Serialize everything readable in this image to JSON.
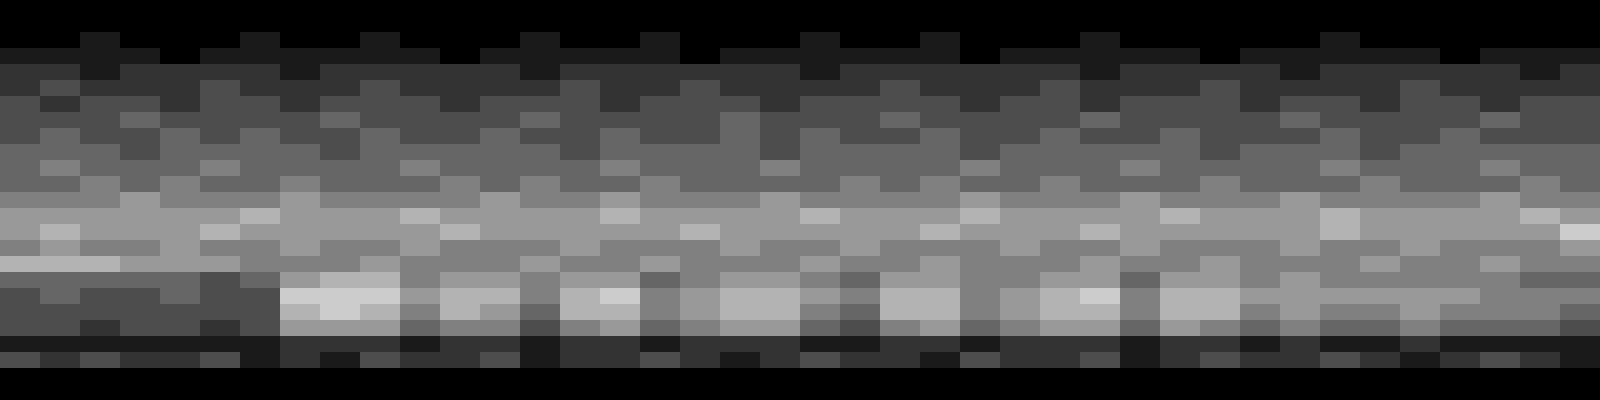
{
  "chart_data": {
    "type": "heatmap",
    "tick_labels": false,
    "zlim": [
      0,
      10
    ],
    "values": [
      [
        0,
        0,
        0,
        0,
        0,
        0,
        0,
        0,
        0,
        0,
        0,
        0,
        0,
        0,
        0,
        0,
        0,
        0,
        0,
        0,
        0,
        0,
        0,
        0,
        0,
        0,
        0,
        0,
        0,
        0,
        0,
        0,
        0,
        0,
        0,
        0,
        0,
        0,
        0,
        0
      ],
      [
        0,
        0,
        0,
        0,
        0,
        0,
        0,
        0,
        0,
        0,
        0,
        0,
        0,
        0,
        0,
        0,
        0,
        0,
        0,
        0,
        0,
        0,
        0,
        0,
        0,
        0,
        0,
        0,
        0,
        0,
        0,
        0,
        0,
        0,
        0,
        0,
        0,
        0,
        0,
        0
      ],
      [
        0,
        0,
        1,
        0,
        0,
        0,
        1,
        0,
        0,
        1,
        0,
        0,
        0,
        1,
        0,
        0,
        1,
        0,
        0,
        0,
        1,
        0,
        0,
        1,
        0,
        0,
        0,
        1,
        0,
        0,
        0,
        0,
        0,
        1,
        0,
        0,
        0,
        0,
        0,
        0
      ],
      [
        1,
        1,
        1,
        1,
        0,
        1,
        1,
        1,
        1,
        1,
        1,
        0,
        1,
        1,
        1,
        1,
        1,
        0,
        1,
        1,
        1,
        1,
        1,
        1,
        0,
        1,
        1,
        1,
        1,
        1,
        0,
        1,
        1,
        1,
        1,
        1,
        0,
        1,
        1,
        1
      ],
      [
        2,
        2,
        1,
        2,
        2,
        2,
        2,
        1,
        2,
        2,
        2,
        2,
        2,
        1,
        2,
        2,
        2,
        2,
        2,
        2,
        1,
        2,
        2,
        2,
        2,
        2,
        2,
        1,
        2,
        2,
        2,
        2,
        1,
        2,
        2,
        2,
        2,
        2,
        1,
        2
      ],
      [
        2,
        3,
        2,
        2,
        2,
        3,
        2,
        2,
        2,
        3,
        2,
        2,
        2,
        2,
        3,
        2,
        2,
        3,
        2,
        2,
        2,
        2,
        3,
        2,
        2,
        2,
        3,
        2,
        2,
        2,
        3,
        2,
        2,
        2,
        2,
        3,
        2,
        2,
        2,
        2
      ],
      [
        3,
        2,
        3,
        3,
        2,
        3,
        3,
        2,
        3,
        3,
        3,
        2,
        3,
        3,
        3,
        2,
        3,
        3,
        3,
        2,
        3,
        3,
        3,
        3,
        2,
        3,
        3,
        2,
        3,
        3,
        3,
        2,
        3,
        3,
        2,
        3,
        3,
        2,
        3,
        3
      ],
      [
        3,
        3,
        3,
        4,
        3,
        3,
        3,
        3,
        4,
        3,
        3,
        3,
        3,
        4,
        3,
        3,
        3,
        3,
        4,
        3,
        3,
        3,
        4,
        3,
        3,
        3,
        3,
        4,
        3,
        3,
        3,
        3,
        4,
        3,
        3,
        3,
        3,
        4,
        3,
        3
      ],
      [
        3,
        4,
        3,
        3,
        4,
        3,
        4,
        3,
        3,
        4,
        3,
        3,
        4,
        3,
        3,
        4,
        3,
        3,
        4,
        3,
        4,
        3,
        3,
        4,
        3,
        3,
        4,
        3,
        3,
        4,
        3,
        3,
        3,
        4,
        3,
        3,
        4,
        3,
        3,
        3
      ],
      [
        4,
        4,
        4,
        3,
        4,
        4,
        4,
        4,
        3,
        4,
        4,
        4,
        4,
        4,
        3,
        4,
        4,
        4,
        4,
        3,
        4,
        4,
        4,
        4,
        3,
        4,
        4,
        4,
        4,
        4,
        3,
        4,
        4,
        4,
        3,
        4,
        4,
        4,
        4,
        4
      ],
      [
        4,
        5,
        4,
        4,
        4,
        5,
        4,
        4,
        4,
        4,
        5,
        4,
        4,
        4,
        4,
        5,
        4,
        4,
        4,
        5,
        4,
        4,
        4,
        4,
        5,
        4,
        4,
        4,
        5,
        4,
        4,
        4,
        4,
        5,
        4,
        4,
        4,
        5,
        4,
        4
      ],
      [
        4,
        4,
        5,
        4,
        5,
        4,
        4,
        5,
        4,
        4,
        4,
        5,
        4,
        5,
        4,
        4,
        5,
        4,
        4,
        4,
        4,
        5,
        4,
        5,
        4,
        4,
        5,
        4,
        4,
        4,
        5,
        4,
        4,
        4,
        5,
        4,
        4,
        4,
        5,
        4
      ],
      [
        5,
        5,
        5,
        6,
        5,
        5,
        5,
        6,
        5,
        5,
        5,
        5,
        6,
        5,
        5,
        6,
        5,
        5,
        5,
        6,
        5,
        5,
        5,
        5,
        6,
        5,
        5,
        5,
        6,
        5,
        5,
        5,
        6,
        5,
        5,
        5,
        5,
        6,
        5,
        5
      ],
      [
        6,
        6,
        6,
        6,
        6,
        6,
        7,
        6,
        6,
        6,
        7,
        6,
        6,
        6,
        6,
        7,
        6,
        6,
        6,
        6,
        7,
        6,
        6,
        6,
        7,
        6,
        6,
        6,
        6,
        7,
        6,
        6,
        6,
        7,
        6,
        6,
        6,
        6,
        7,
        6
      ],
      [
        6,
        7,
        6,
        6,
        6,
        7,
        6,
        6,
        6,
        6,
        6,
        7,
        6,
        6,
        6,
        6,
        6,
        7,
        6,
        6,
        6,
        6,
        6,
        7,
        6,
        6,
        6,
        7,
        6,
        6,
        6,
        6,
        6,
        7,
        6,
        6,
        6,
        6,
        6,
        8
      ],
      [
        5,
        6,
        5,
        5,
        6,
        5,
        5,
        6,
        5,
        5,
        6,
        5,
        5,
        5,
        6,
        5,
        5,
        5,
        6,
        5,
        5,
        6,
        5,
        5,
        5,
        6,
        5,
        5,
        6,
        5,
        5,
        5,
        6,
        5,
        5,
        6,
        5,
        5,
        5,
        6
      ],
      [
        7,
        7,
        7,
        6,
        6,
        6,
        5,
        5,
        5,
        6,
        5,
        5,
        5,
        6,
        5,
        5,
        6,
        5,
        5,
        5,
        6,
        5,
        5,
        6,
        5,
        5,
        5,
        6,
        5,
        5,
        6,
        5,
        5,
        5,
        6,
        5,
        5,
        6,
        5,
        5
      ],
      [
        4,
        4,
        4,
        4,
        4,
        3,
        4,
        6,
        7,
        7,
        5,
        6,
        6,
        5,
        6,
        6,
        4,
        5,
        6,
        6,
        5,
        4,
        6,
        6,
        5,
        5,
        6,
        6,
        4,
        6,
        6,
        5,
        6,
        5,
        5,
        5,
        5,
        5,
        4,
        4
      ],
      [
        3,
        4,
        3,
        3,
        4,
        3,
        3,
        8,
        8,
        8,
        6,
        7,
        7,
        5,
        7,
        8,
        5,
        6,
        7,
        7,
        6,
        5,
        7,
        7,
        5,
        6,
        7,
        8,
        5,
        7,
        7,
        6,
        6,
        6,
        6,
        6,
        6,
        5,
        5,
        5
      ],
      [
        3,
        3,
        3,
        3,
        3,
        3,
        3,
        7,
        8,
        7,
        5,
        7,
        6,
        4,
        7,
        7,
        5,
        6,
        7,
        7,
        5,
        4,
        7,
        7,
        5,
        6,
        7,
        7,
        5,
        7,
        7,
        5,
        6,
        5,
        5,
        6,
        5,
        5,
        5,
        4
      ],
      [
        3,
        3,
        2,
        3,
        3,
        2,
        3,
        6,
        6,
        6,
        4,
        5,
        5,
        3,
        5,
        6,
        4,
        5,
        6,
        6,
        4,
        3,
        5,
        6,
        4,
        5,
        6,
        6,
        4,
        6,
        5,
        4,
        5,
        4,
        4,
        5,
        4,
        4,
        4,
        3
      ],
      [
        1,
        1,
        1,
        1,
        1,
        1,
        1,
        2,
        2,
        2,
        1,
        2,
        2,
        1,
        2,
        2,
        1,
        2,
        2,
        2,
        1,
        1,
        2,
        2,
        1,
        2,
        2,
        2,
        1,
        2,
        2,
        1,
        2,
        1,
        1,
        2,
        1,
        1,
        1,
        1
      ],
      [
        3,
        2,
        3,
        2,
        2,
        3,
        1,
        2,
        1,
        3,
        2,
        2,
        3,
        1,
        2,
        2,
        3,
        2,
        1,
        2,
        3,
        2,
        2,
        1,
        3,
        2,
        2,
        3,
        1,
        2,
        3,
        2,
        2,
        3,
        2,
        1,
        2,
        3,
        2,
        1
      ],
      [
        0,
        0,
        0,
        0,
        0,
        0,
        0,
        0,
        0,
        0,
        0,
        0,
        0,
        0,
        0,
        0,
        0,
        0,
        0,
        0,
        0,
        0,
        0,
        0,
        0,
        0,
        0,
        0,
        0,
        0,
        0,
        0,
        0,
        0,
        0,
        0,
        0,
        0,
        0,
        0
      ],
      [
        0,
        0,
        0,
        0,
        0,
        0,
        0,
        0,
        0,
        0,
        0,
        0,
        0,
        0,
        0,
        0,
        0,
        0,
        0,
        0,
        0,
        0,
        0,
        0,
        0,
        0,
        0,
        0,
        0,
        0,
        0,
        0,
        0,
        0,
        0,
        0,
        0,
        0,
        0,
        0
      ]
    ]
  }
}
